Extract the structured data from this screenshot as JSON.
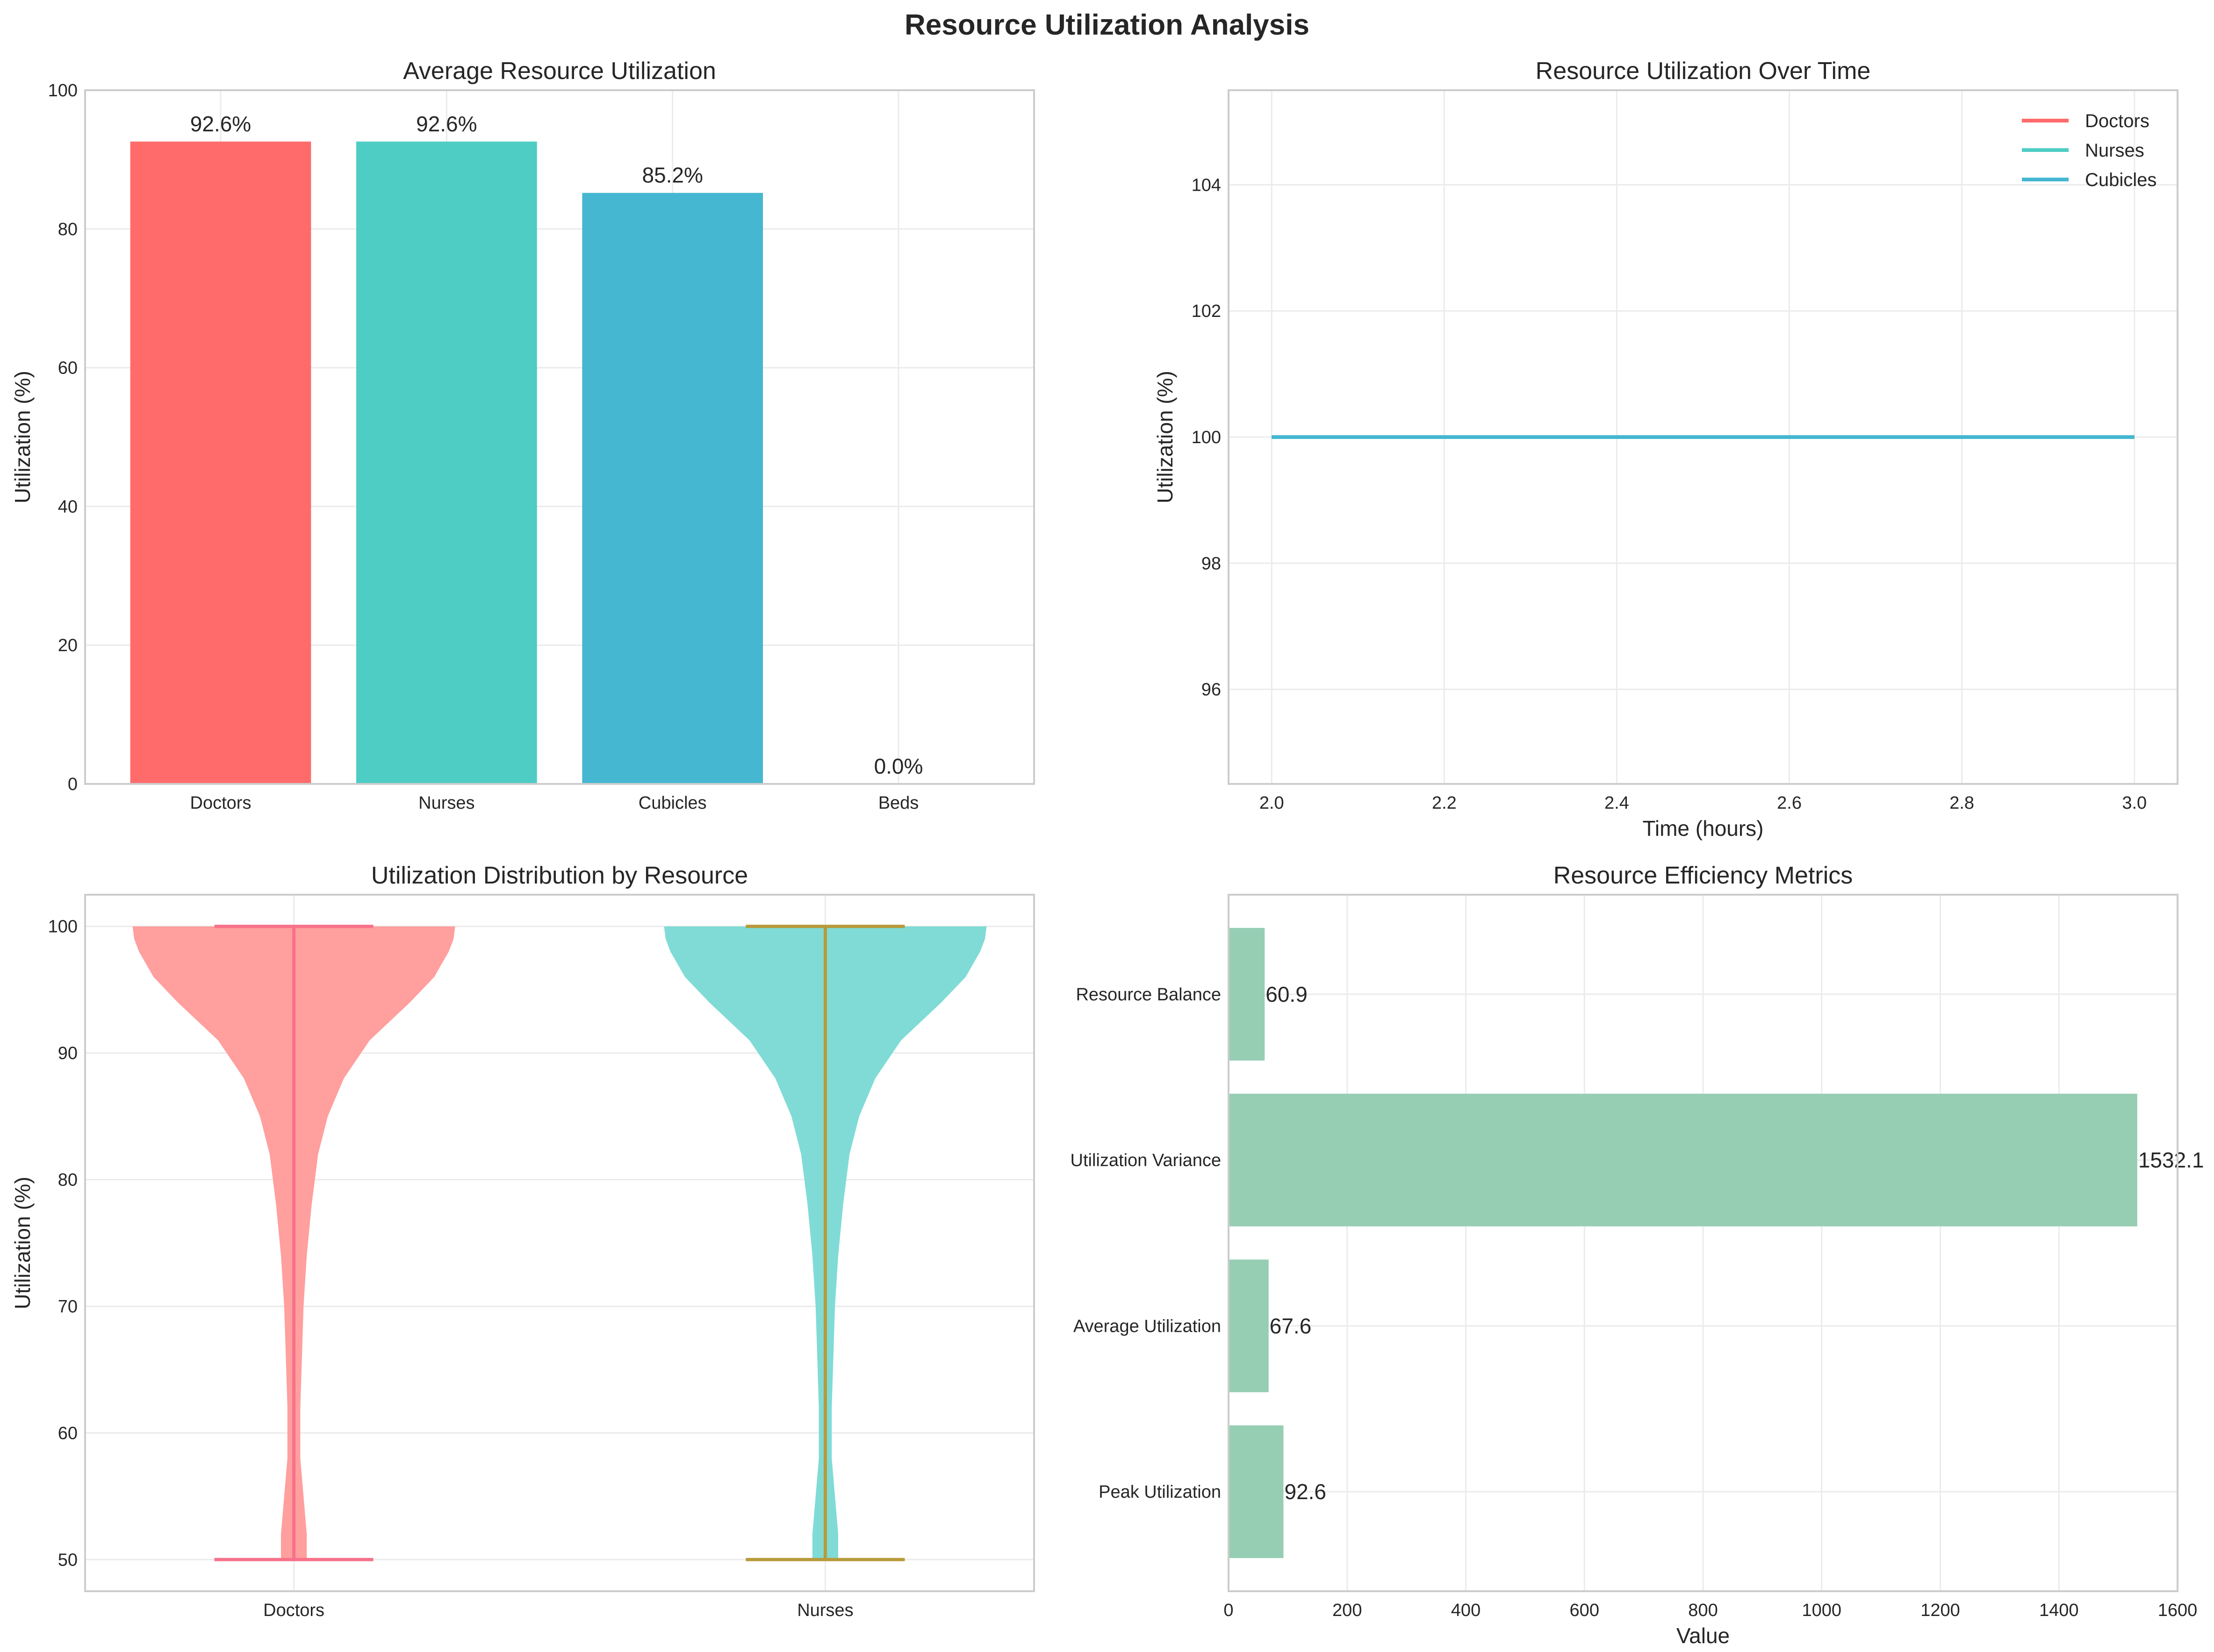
{
  "figure": {
    "title": "Resource Utilization Analysis"
  },
  "colors": {
    "doctors": "#FF6B6B",
    "nurses": "#4ECDC4",
    "cubicles": "#45B7D1",
    "metrics": "#96CEB4",
    "violin_doctors": "#FF9F9E",
    "violin_nurses": "#80DBD6",
    "violin_doctors_lines": "#F77189",
    "violin_nurses_lines": "#B89A3A",
    "grid": "#EBEBEB",
    "spine": "#CCCCCC"
  },
  "chart_data": [
    {
      "id": "avg",
      "type": "bar",
      "title": "Average Resource Utilization",
      "xlabel": "",
      "ylabel": "Utilization (%)",
      "categories": [
        "Doctors",
        "Nurses",
        "Cubicles",
        "Beds"
      ],
      "values": [
        92.6,
        92.6,
        85.2,
        0.0
      ],
      "value_labels": [
        "92.6%",
        "92.6%",
        "85.2%",
        "0.0%"
      ],
      "ylim": [
        0,
        100
      ],
      "yticks": [
        0,
        20,
        40,
        60,
        80,
        100
      ],
      "grid": true
    },
    {
      "id": "time",
      "type": "line",
      "title": "Resource Utilization Over Time",
      "xlabel": "Time (hours)",
      "ylabel": "Utilization (%)",
      "xlim": [
        1.95,
        3.05
      ],
      "ylim": [
        94.5,
        105.5
      ],
      "xticks": [
        2.0,
        2.2,
        2.4,
        2.6,
        2.8,
        3.0
      ],
      "yticks": [
        96,
        98,
        100,
        102,
        104
      ],
      "legend_position": "top-right",
      "grid": true,
      "series": [
        {
          "name": "Doctors",
          "x": [
            2.0,
            3.0
          ],
          "y": [
            100,
            100
          ]
        },
        {
          "name": "Nurses",
          "x": [
            2.0,
            3.0
          ],
          "y": [
            100,
            100
          ]
        },
        {
          "name": "Cubicles",
          "x": [
            2.0,
            3.0
          ],
          "y": [
            100,
            100
          ]
        }
      ]
    },
    {
      "id": "violin",
      "type": "violin",
      "title": "Utilization Distribution by Resource",
      "xlabel": "",
      "ylabel": "Utilization (%)",
      "categories": [
        "Doctors",
        "Nurses"
      ],
      "ylim": [
        47.5,
        102.5
      ],
      "yticks": [
        50,
        60,
        70,
        80,
        90,
        100
      ],
      "min": [
        50,
        50
      ],
      "max": [
        100,
        100
      ],
      "grid": true,
      "density_profile": {
        "levels": [
          50,
          52,
          55,
          58,
          62,
          66,
          70,
          74,
          78,
          82,
          85,
          88,
          91,
          94,
          96,
          98,
          99,
          100
        ],
        "relative_width": [
          0.08,
          0.08,
          0.06,
          0.04,
          0.04,
          0.05,
          0.06,
          0.08,
          0.11,
          0.15,
          0.21,
          0.31,
          0.47,
          0.72,
          0.87,
          0.96,
          0.99,
          1.0
        ]
      }
    },
    {
      "id": "metrics",
      "type": "bar-horizontal",
      "title": "Resource Efficiency Metrics",
      "xlabel": "Value",
      "ylabel": "",
      "categories": [
        "Peak Utilization",
        "Average Utilization",
        "Utilization Variance",
        "Resource Balance"
      ],
      "values": [
        92.6,
        67.6,
        1532.1,
        60.9
      ],
      "value_labels": [
        "92.6",
        "67.6",
        "1532.1",
        "60.9"
      ],
      "xlim": [
        0,
        1600
      ],
      "xticks": [
        0,
        200,
        400,
        600,
        800,
        1000,
        1200,
        1400,
        1600
      ],
      "grid": true
    }
  ]
}
